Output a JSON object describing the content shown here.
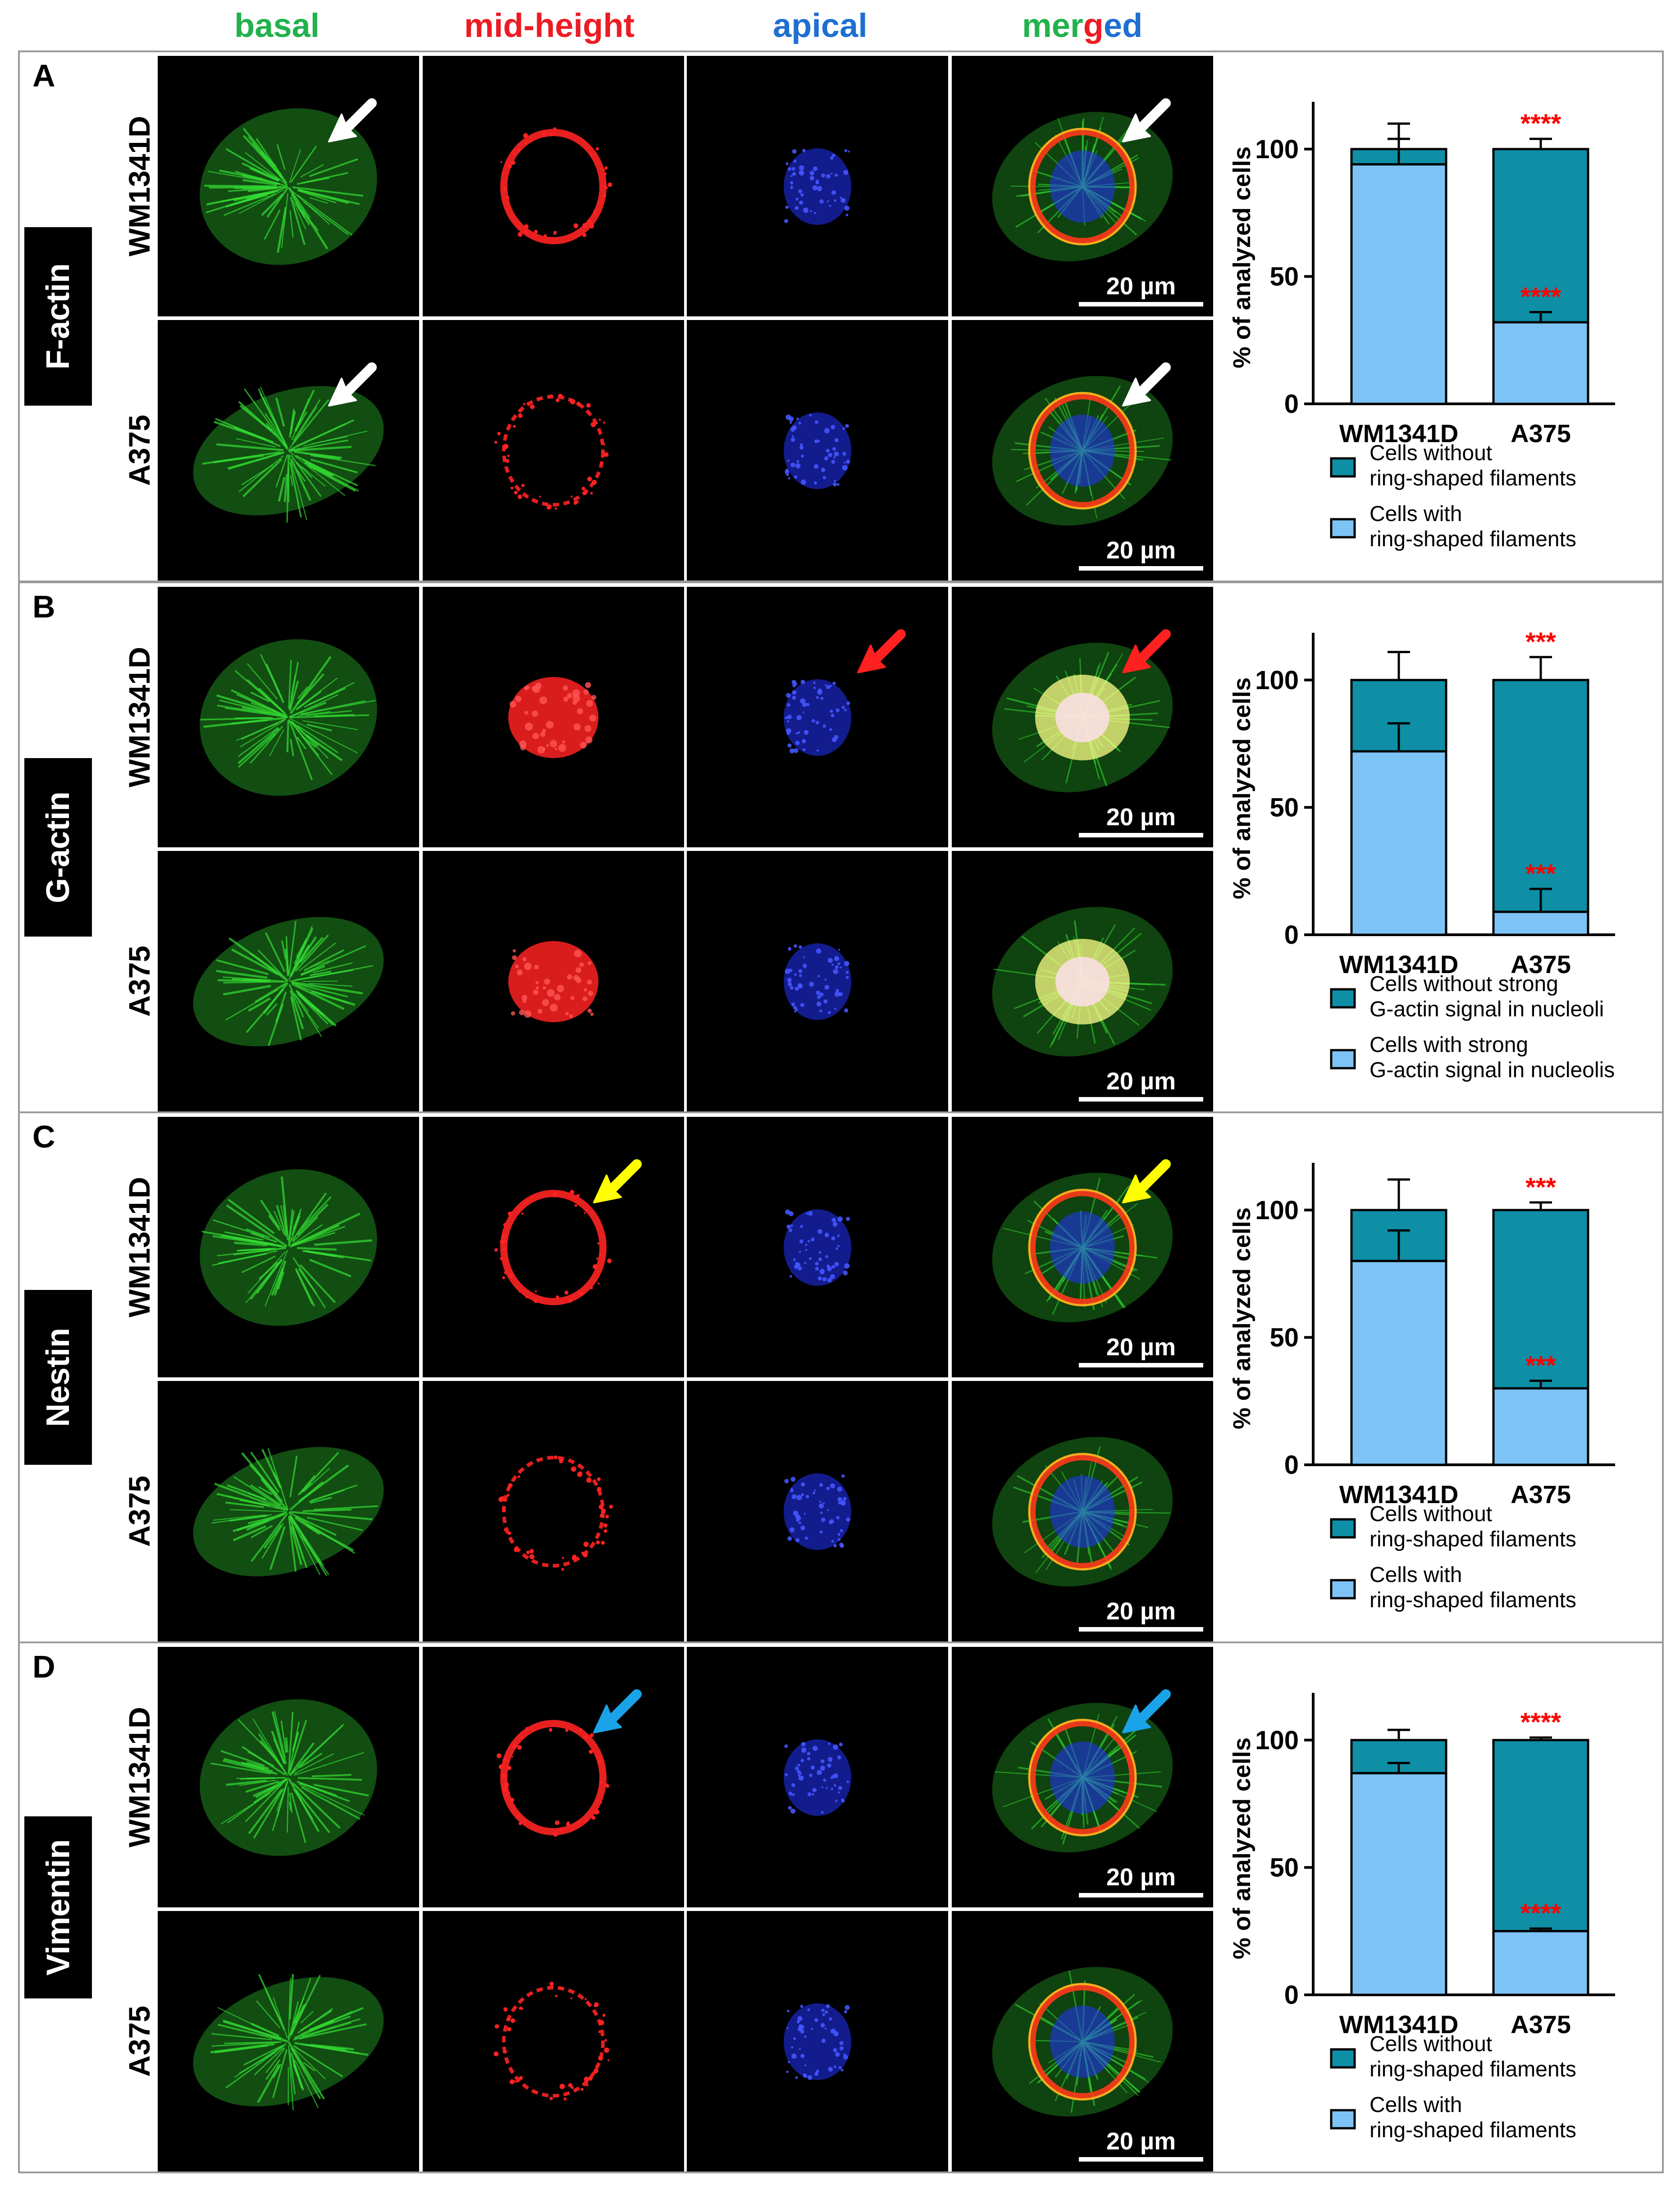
{
  "columns": [
    {
      "label": "basal",
      "color": "#22b14c"
    },
    {
      "label": "mid-height",
      "color": "#ed1c24"
    },
    {
      "label": "apical",
      "color": "#1f6fd1"
    }
  ],
  "merged_header": [
    {
      "text": "mer",
      "color": "#22b14c"
    },
    {
      "text": "g",
      "color": "#ed1c24"
    },
    {
      "text": "ed",
      "color": "#1f6fd1"
    }
  ],
  "colors": {
    "dark_bar": "#0e8fa6",
    "light_bar": "#7ec3f5",
    "significance": "#ff0000",
    "frame": "#9a9a9a"
  },
  "panels": [
    {
      "letter": "A",
      "marker": "F-actin",
      "rows": [
        "WM1341D",
        "A375"
      ],
      "scale_label": "20 µm",
      "arrows": [
        {
          "row": 0,
          "cols": [
            0,
            3
          ],
          "color": "#ffffff"
        },
        {
          "row": 1,
          "cols": [
            0,
            3
          ],
          "color": "#ffffff"
        }
      ],
      "legend": {
        "dark": [
          "Cells without",
          "ring-shaped filaments"
        ],
        "light": [
          "Cells with",
          "ring-shaped filaments"
        ]
      },
      "stars": "****"
    },
    {
      "letter": "B",
      "marker": "G-actin",
      "rows": [
        "WM1341D",
        "A375"
      ],
      "scale_label": "20 µm",
      "arrows": [
        {
          "row": 0,
          "cols": [
            2,
            3
          ],
          "color": "#ff2020"
        }
      ],
      "legend": {
        "dark": [
          "Cells without strong",
          "G-actin signal in nucleoli"
        ],
        "light": [
          "Cells with strong",
          "G-actin signal in nucleolis"
        ]
      },
      "stars": "***"
    },
    {
      "letter": "C",
      "marker": "Nestin",
      "rows": [
        "WM1341D",
        "A375"
      ],
      "scale_label": "20 µm",
      "arrows": [
        {
          "row": 0,
          "cols": [
            1,
            3
          ],
          "color": "#ffff00"
        }
      ],
      "legend": {
        "dark": [
          "Cells without",
          "ring-shaped filaments"
        ],
        "light": [
          "Cells with",
          "ring-shaped filaments"
        ]
      },
      "stars": "***"
    },
    {
      "letter": "D",
      "marker": "Vimentin",
      "rows": [
        "WM1341D",
        "A375"
      ],
      "scale_label": "20 µm",
      "arrows": [
        {
          "row": 0,
          "cols": [
            1,
            3
          ],
          "color": "#1aa3e8"
        }
      ],
      "legend": {
        "dark": [
          "Cells without",
          "ring-shaped filaments"
        ],
        "light": [
          "Cells with",
          "ring-shaped filaments"
        ]
      },
      "stars": "****"
    }
  ],
  "chart_data": [
    {
      "type": "bar",
      "stacked": true,
      "panel": "A",
      "categories": [
        "WM1341D",
        "A375"
      ],
      "series": [
        {
          "name": "Cells with ring-shaped filaments",
          "values": [
            94,
            32
          ],
          "errors": [
            10,
            4
          ]
        },
        {
          "name": "Cells without ring-shaped filaments",
          "values": [
            6,
            68
          ],
          "errors": [
            10,
            4
          ]
        }
      ],
      "ylabel": "% of analyzed cells",
      "ylim": [
        0,
        115
      ],
      "yticks": [
        0,
        50,
        100
      ],
      "significance": [
        "****",
        "****"
      ]
    },
    {
      "type": "bar",
      "stacked": true,
      "panel": "B",
      "categories": [
        "WM1341D",
        "A375"
      ],
      "series": [
        {
          "name": "Cells with strong G-actin signal in nucleolis",
          "values": [
            72,
            9
          ],
          "errors": [
            11,
            9
          ]
        },
        {
          "name": "Cells without strong G-actin signal in nucleoli",
          "values": [
            28,
            91
          ],
          "errors": [
            11,
            9
          ]
        }
      ],
      "ylabel": "% of analyzed cells",
      "ylim": [
        0,
        115
      ],
      "yticks": [
        0,
        50,
        100
      ],
      "significance": [
        "***",
        "***"
      ]
    },
    {
      "type": "bar",
      "stacked": true,
      "panel": "C",
      "categories": [
        "WM1341D",
        "A375"
      ],
      "series": [
        {
          "name": "Cells with ring-shaped filaments",
          "values": [
            80,
            30
          ],
          "errors": [
            12,
            3
          ]
        },
        {
          "name": "Cells without ring-shaped filaments",
          "values": [
            20,
            70
          ],
          "errors": [
            12,
            3
          ]
        }
      ],
      "ylabel": "% of analyzed cells",
      "ylim": [
        0,
        115
      ],
      "yticks": [
        0,
        50,
        100
      ],
      "significance": [
        "***",
        "***"
      ]
    },
    {
      "type": "bar",
      "stacked": true,
      "panel": "D",
      "categories": [
        "WM1341D",
        "A375"
      ],
      "series": [
        {
          "name": "Cells with ring-shaped filaments",
          "values": [
            87,
            25
          ],
          "errors": [
            4,
            1
          ]
        },
        {
          "name": "Cells without ring-shaped filaments",
          "values": [
            13,
            75
          ],
          "errors": [
            4,
            1
          ]
        }
      ],
      "ylabel": "% of analyzed cells",
      "ylim": [
        0,
        115
      ],
      "yticks": [
        0,
        50,
        100
      ],
      "significance": [
        "****",
        "****"
      ]
    }
  ]
}
